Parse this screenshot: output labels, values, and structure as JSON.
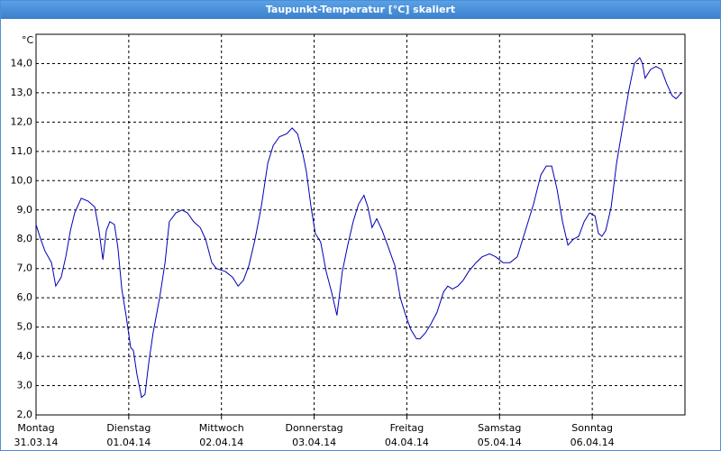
{
  "window_title": "Taupunkt-Temperatur [°C] skaliert",
  "chart_data": {
    "type": "line",
    "y_unit": "°C",
    "xlim": [
      0,
      168
    ],
    "ylim": [
      2,
      15
    ],
    "grid": true,
    "yticks": [
      {
        "value": 2,
        "label": "2,0"
      },
      {
        "value": 3,
        "label": "3,0"
      },
      {
        "value": 4,
        "label": "4,0"
      },
      {
        "value": 5,
        "label": "5,0"
      },
      {
        "value": 6,
        "label": "6,0"
      },
      {
        "value": 7,
        "label": "7,0"
      },
      {
        "value": 8,
        "label": "8,0"
      },
      {
        "value": 9,
        "label": "9,0"
      },
      {
        "value": 10,
        "label": "10,0"
      },
      {
        "value": 11,
        "label": "11,0"
      },
      {
        "value": 12,
        "label": "12,0"
      },
      {
        "value": 13,
        "label": "13,0"
      },
      {
        "value": 14,
        "label": "14,0"
      }
    ],
    "xticks": [
      {
        "value": 0,
        "label": [
          "Montag",
          "31.03.14"
        ]
      },
      {
        "value": 24,
        "label": [
          "Dienstag",
          "01.04.14"
        ]
      },
      {
        "value": 48,
        "label": [
          "Mittwoch",
          "02.04.14"
        ]
      },
      {
        "value": 72,
        "label": [
          "Donnerstag",
          "03.04.14"
        ]
      },
      {
        "value": 96,
        "label": [
          "Freitag",
          "04.04.14"
        ]
      },
      {
        "value": 120,
        "label": [
          "Samstag",
          "05.04.14"
        ]
      },
      {
        "value": 144,
        "label": [
          "Sonntag",
          "06.04.14"
        ]
      }
    ],
    "x": [
      0,
      1.2,
      2.3,
      4.0,
      5.1,
      6.5,
      7.7,
      8.9,
      10.0,
      11.7,
      13.5,
      15.2,
      16.3,
      17.3,
      18.2,
      19.1,
      20.3,
      21.2,
      22.2,
      23.3,
      24.5,
      25.2,
      26.1,
      27.3,
      28.2,
      29.2,
      30.3,
      32.0,
      33.4,
      34.5,
      36.2,
      37.8,
      39.2,
      40.8,
      42.5,
      43.9,
      45.5,
      46.7,
      49.0,
      50.9,
      52.3,
      53.7,
      55.1,
      56.7,
      58.3,
      60.0,
      61.4,
      63.0,
      64.9,
      66.3,
      67.7,
      69.1,
      70.0,
      71.2,
      72.3,
      73.7,
      75.1,
      76.5,
      77.9,
      79.3,
      80.7,
      82.1,
      83.5,
      84.9,
      85.9,
      87.0,
      88.2,
      89.6,
      91.0,
      92.9,
      94.3,
      95.7,
      97.1,
      98.5,
      99.4,
      100.8,
      102.2,
      103.8,
      105.5,
      106.6,
      107.8,
      109.2,
      110.6,
      112.0,
      113.9,
      115.5,
      117.4,
      119.0,
      120.9,
      122.7,
      124.6,
      126.0,
      127.4,
      128.8,
      130.7,
      132.1,
      133.5,
      134.9,
      136.3,
      137.7,
      139.1,
      140.5,
      141.9,
      143.3,
      144.7,
      145.6,
      146.5,
      147.5,
      148.9,
      150.3,
      151.7,
      153.5,
      154.9,
      156.3,
      157.0,
      157.7,
      159.1,
      160.5,
      161.9,
      163.3,
      164.7,
      165.7,
      167.1
    ],
    "series": [
      {
        "color": "#0000b4",
        "values": [
          8.5,
          8.0,
          7.6,
          7.2,
          6.4,
          6.7,
          7.4,
          8.3,
          8.9,
          9.4,
          9.3,
          9.1,
          8.3,
          7.3,
          8.3,
          8.6,
          8.5,
          7.7,
          6.3,
          5.4,
          4.3,
          4.2,
          3.4,
          2.6,
          2.7,
          3.8,
          4.8,
          6.0,
          7.2,
          8.6,
          8.9,
          9.0,
          8.9,
          8.6,
          8.4,
          8.0,
          7.2,
          7.0,
          6.9,
          6.7,
          6.4,
          6.6,
          7.1,
          8.0,
          9.1,
          10.6,
          11.2,
          11.5,
          11.6,
          11.8,
          11.6,
          10.9,
          10.3,
          9.1,
          8.2,
          7.9,
          6.9,
          6.2,
          5.4,
          6.9,
          7.8,
          8.6,
          9.2,
          9.5,
          9.1,
          8.4,
          8.7,
          8.3,
          7.8,
          7.1,
          6.0,
          5.4,
          4.9,
          4.6,
          4.6,
          4.8,
          5.1,
          5.5,
          6.2,
          6.4,
          6.3,
          6.4,
          6.6,
          6.9,
          7.2,
          7.4,
          7.5,
          7.4,
          7.2,
          7.2,
          7.4,
          8.0,
          8.6,
          9.2,
          10.2,
          10.5,
          10.5,
          9.7,
          8.6,
          7.8,
          8.0,
          8.1,
          8.6,
          8.9,
          8.8,
          8.2,
          8.1,
          8.3,
          9.1,
          10.6,
          11.7,
          13.1,
          14.0,
          14.2,
          14.0,
          13.5,
          13.8,
          13.9,
          13.8,
          13.3,
          12.9,
          12.8,
          13.0
        ]
      }
    ]
  }
}
